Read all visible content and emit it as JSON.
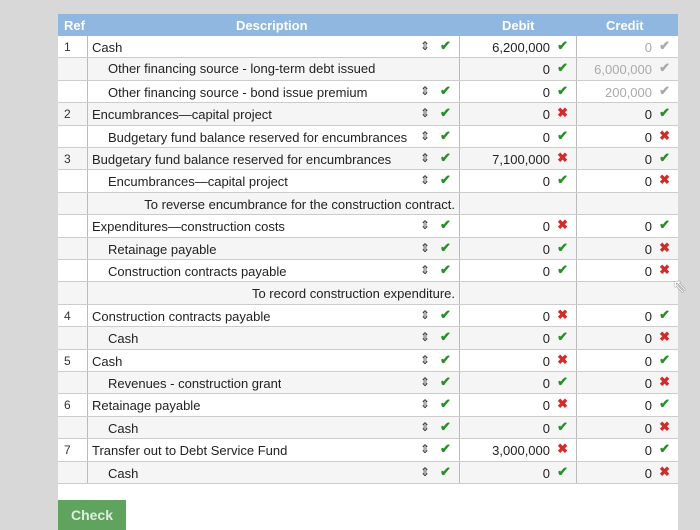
{
  "table": {
    "headers": {
      "ref": "Ref",
      "description": "Description",
      "debit": "Debit",
      "credit": "Credit"
    },
    "rows": [
      {
        "ref": "1",
        "desc": "Cash",
        "indent": 0,
        "dd": true,
        "debit": "6,200,000",
        "debit_mark": "ok",
        "credit": "0",
        "credit_mark": "ok-faint"
      },
      {
        "ref": "",
        "desc": "Other financing source - long-term debt issued",
        "indent": 1,
        "dd": false,
        "input": true,
        "debit": "0",
        "debit_mark": "ok",
        "credit": "6,000,000",
        "credit_mark": "ok-faint"
      },
      {
        "ref": "",
        "desc": "Other financing source - bond issue premium",
        "indent": 1,
        "dd": true,
        "debit": "0",
        "debit_mark": "ok",
        "credit": "200,000",
        "credit_mark": "ok-faint"
      },
      {
        "ref": "2",
        "desc": "Encumbrances—capital project",
        "indent": 0,
        "dd": true,
        "debit": "0",
        "debit_mark": "bad",
        "credit": "0",
        "credit_mark": "ok"
      },
      {
        "ref": "",
        "desc": "Budgetary fund balance reserved for encumbrances",
        "indent": 1,
        "dd": true,
        "debit": "0",
        "debit_mark": "ok",
        "credit": "0",
        "credit_mark": "bad"
      },
      {
        "ref": "3",
        "desc": "Budgetary fund balance reserved for encumbrances",
        "indent": 0,
        "dd": true,
        "debit": "7,100,000",
        "debit_mark": "bad",
        "credit": "0",
        "credit_mark": "ok"
      },
      {
        "ref": "",
        "desc": "Encumbrances—capital project",
        "indent": 1,
        "dd": true,
        "debit": "0",
        "debit_mark": "ok",
        "credit": "0",
        "credit_mark": "bad"
      },
      {
        "ref": "",
        "desc": "To reverse encumbrance for the construction contract.",
        "note": true
      },
      {
        "ref": "",
        "desc": "Expenditures—construction costs",
        "indent": 0,
        "dd": true,
        "debit": "0",
        "debit_mark": "bad",
        "credit": "0",
        "credit_mark": "ok"
      },
      {
        "ref": "",
        "desc": "Retainage payable",
        "indent": 1,
        "dd": true,
        "debit": "0",
        "debit_mark": "ok",
        "credit": "0",
        "credit_mark": "bad"
      },
      {
        "ref": "",
        "desc": "Construction contracts payable",
        "indent": 1,
        "dd": false,
        "debit": "0",
        "debit_mark": "ok",
        "credit": "0",
        "credit_mark": "bad"
      },
      {
        "ref": "",
        "desc": "To record construction expenditure.",
        "note": true
      },
      {
        "ref": "4",
        "desc": "Construction contracts payable",
        "indent": 0,
        "dd": true,
        "debit": "0",
        "debit_mark": "bad",
        "credit": "0",
        "credit_mark": "ok"
      },
      {
        "ref": "",
        "desc": "Cash",
        "indent": 1,
        "dd": true,
        "debit": "0",
        "debit_mark": "ok",
        "credit": "0",
        "credit_mark": "bad"
      },
      {
        "ref": "5",
        "desc": "Cash",
        "indent": 0,
        "dd": true,
        "debit": "0",
        "debit_mark": "bad",
        "credit": "0",
        "credit_mark": "ok"
      },
      {
        "ref": "",
        "desc": "Revenues - construction grant",
        "indent": 1,
        "dd": true,
        "debit": "0",
        "debit_mark": "ok",
        "credit": "0",
        "credit_mark": "bad"
      },
      {
        "ref": "6",
        "desc": "Retainage payable",
        "indent": 0,
        "dd": true,
        "debit": "0",
        "debit_mark": "bad",
        "credit": "0",
        "credit_mark": "ok"
      },
      {
        "ref": "",
        "desc": "Cash",
        "indent": 1,
        "dd": true,
        "debit": "0",
        "debit_mark": "ok",
        "credit": "0",
        "credit_mark": "bad"
      },
      {
        "ref": "7",
        "desc": "Transfer out to Debt Service Fund",
        "indent": 0,
        "dd": true,
        "debit": "3,000,000",
        "debit_mark": "bad",
        "credit": "0",
        "credit_mark": "ok"
      },
      {
        "ref": "",
        "desc": "Cash",
        "indent": 1,
        "dd": true,
        "debit": "0",
        "debit_mark": "ok",
        "credit": "0",
        "credit_mark": "bad"
      }
    ]
  },
  "check_button": {
    "label": "Check"
  },
  "icons": {
    "correct": "check-mark-icon",
    "incorrect": "x-mark-icon",
    "select": "up-down-arrows-icon"
  },
  "colors": {
    "header": "#8fb7df",
    "correct": "#2a8f2a",
    "incorrect": "#d32b2b",
    "button": "#5fa35f"
  }
}
